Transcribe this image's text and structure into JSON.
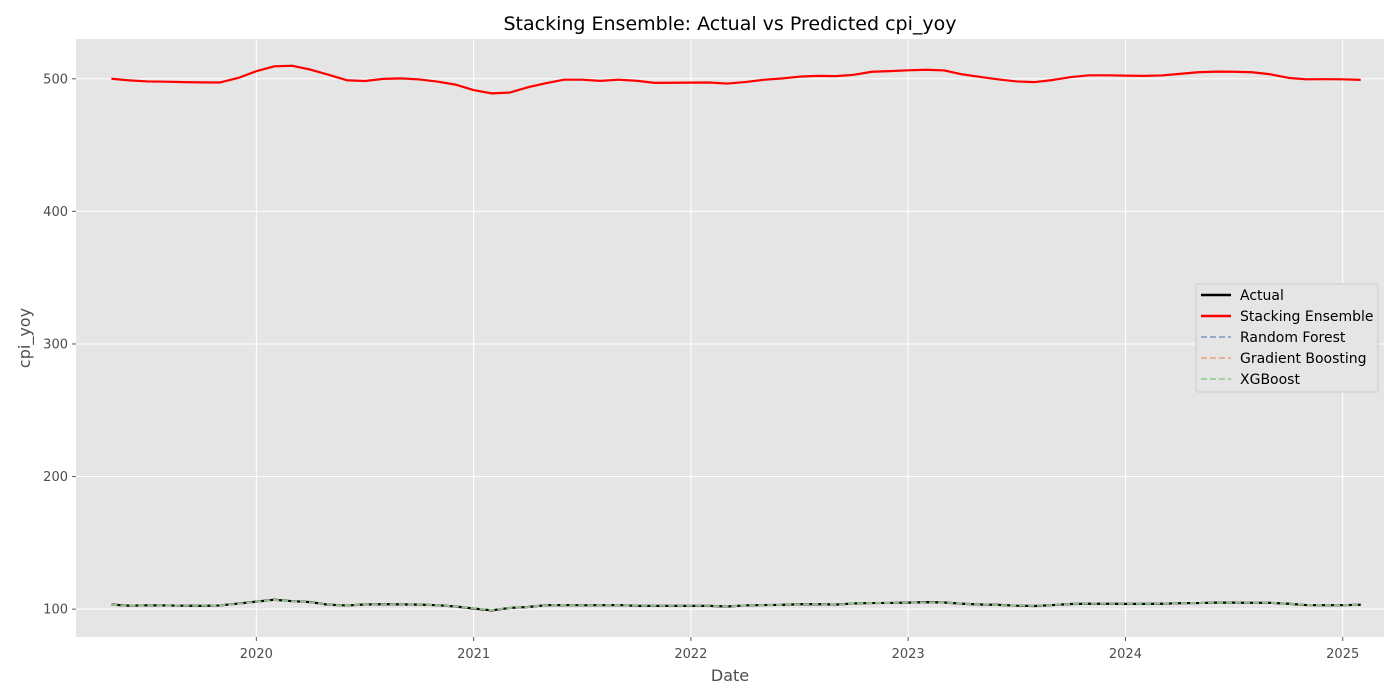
{
  "chart_data": {
    "type": "line",
    "title": "Stacking Ensemble: Actual vs Predicted cpi_yoy",
    "xlabel": "Date",
    "ylabel": "cpi_yoy",
    "xlim": [
      2019.17,
      2025.19
    ],
    "ylim": [
      79,
      530
    ],
    "x_ticks": [
      2020,
      2021,
      2022,
      2023,
      2024,
      2025
    ],
    "x_tick_labels": [
      "2020",
      "2021",
      "2022",
      "2023",
      "2024",
      "2025"
    ],
    "y_ticks": [
      100,
      200,
      300,
      400,
      500
    ],
    "y_tick_labels": [
      "100",
      "200",
      "300",
      "400",
      "500"
    ],
    "grid": true,
    "legend_position": "center-right",
    "x_start_year": 2019.333,
    "x_step_years": 0.08333,
    "series": [
      {
        "name": "Actual",
        "color": "#000000",
        "style": "solid",
        "values": [
          103.4,
          102.6,
          102.9,
          102.8,
          102.6,
          102.5,
          102.8,
          104.2,
          105.7,
          107.1,
          106.0,
          105.3,
          103.3,
          102.8,
          103.5,
          103.7,
          103.6,
          103.4,
          103.0,
          102.0,
          100.5,
          99.1,
          100.9,
          101.6,
          103.0,
          103.1,
          102.9,
          103.0,
          103.1,
          102.5,
          102.5,
          102.5,
          102.5,
          102.5,
          102.0,
          102.8,
          103.1,
          103.2,
          103.7,
          103.8,
          103.4,
          104.3,
          104.6,
          104.7,
          104.9,
          105.3,
          105.0,
          104.1,
          103.5,
          103.2,
          102.6,
          102.4,
          103.1,
          103.9,
          104.1,
          104.1,
          104.0,
          104.0,
          104.1,
          104.5,
          104.6,
          104.9,
          104.9,
          104.8,
          104.8,
          104.1,
          103.1,
          103.0,
          103.0,
          103.3
        ]
      },
      {
        "name": "Stacking Ensemble",
        "color": "#ff0000",
        "style": "solid",
        "values": [
          500.0,
          498.8,
          498.0,
          497.8,
          497.5,
          497.3,
          497.2,
          500.6,
          505.7,
          509.4,
          509.8,
          506.9,
          503.0,
          498.9,
          498.3,
          499.9,
          500.3,
          499.5,
          497.9,
          495.6,
          491.5,
          489.0,
          489.6,
          493.6,
          496.7,
          499.3,
          499.3,
          498.4,
          499.3,
          498.5,
          496.9,
          497.0,
          497.1,
          497.2,
          496.4,
          497.5,
          499.2,
          500.2,
          501.6,
          502.2,
          502.0,
          503.0,
          505.3,
          505.8,
          506.4,
          506.8,
          506.3,
          503.3,
          501.4,
          499.5,
          498.0,
          497.5,
          499.1,
          501.3,
          502.6,
          502.6,
          502.4,
          502.2,
          502.5,
          503.7,
          504.9,
          505.4,
          505.3,
          504.9,
          503.4,
          500.7,
          499.6,
          499.7,
          499.6,
          499.2
        ]
      },
      {
        "name": "Random Forest",
        "color": "#7b96c4",
        "style": "dashed",
        "values": [
          103.2,
          102.5,
          102.8,
          102.7,
          102.5,
          102.4,
          102.7,
          104.0,
          105.5,
          106.8,
          105.8,
          105.1,
          103.2,
          102.7,
          103.4,
          103.6,
          103.5,
          103.3,
          102.9,
          101.9,
          100.6,
          99.3,
          100.8,
          101.5,
          102.9,
          103.0,
          102.8,
          102.9,
          103.0,
          102.4,
          102.4,
          102.4,
          102.4,
          102.4,
          102.0,
          102.7,
          103.0,
          103.1,
          103.6,
          103.7,
          103.3,
          104.2,
          104.5,
          104.6,
          104.8,
          105.1,
          104.9,
          104.0,
          103.4,
          103.1,
          102.6,
          102.4,
          103.0,
          103.8,
          104.0,
          104.0,
          103.9,
          103.9,
          104.0,
          104.4,
          104.5,
          104.8,
          104.8,
          104.7,
          104.7,
          104.0,
          103.1,
          103.0,
          103.0,
          103.2
        ]
      },
      {
        "name": "Gradient Boosting",
        "color": "#e8a07a",
        "style": "dashed",
        "values": [
          103.3,
          102.6,
          102.9,
          102.8,
          102.6,
          102.5,
          102.8,
          104.1,
          105.6,
          107.0,
          105.9,
          105.2,
          103.3,
          102.8,
          103.5,
          103.7,
          103.6,
          103.4,
          103.0,
          102.0,
          100.6,
          99.2,
          100.9,
          101.6,
          103.0,
          103.1,
          102.9,
          103.0,
          103.1,
          102.5,
          102.5,
          102.5,
          102.5,
          102.5,
          102.0,
          102.8,
          103.1,
          103.2,
          103.7,
          103.8,
          103.4,
          104.3,
          104.6,
          104.7,
          104.9,
          105.2,
          105.0,
          104.1,
          103.5,
          103.2,
          102.6,
          102.4,
          103.1,
          103.9,
          104.1,
          104.1,
          104.0,
          104.0,
          104.1,
          104.5,
          104.6,
          104.9,
          104.9,
          104.8,
          104.8,
          104.1,
          103.1,
          103.0,
          103.0,
          103.3
        ]
      },
      {
        "name": "XGBoost",
        "color": "#8ec98c",
        "style": "dashed",
        "values": [
          103.4,
          102.7,
          103.0,
          102.9,
          102.7,
          102.6,
          102.9,
          104.2,
          105.7,
          107.1,
          106.0,
          105.3,
          103.4,
          102.9,
          103.6,
          103.8,
          103.7,
          103.5,
          103.1,
          102.1,
          100.7,
          99.3,
          101.0,
          101.7,
          103.1,
          103.2,
          103.0,
          103.1,
          103.2,
          102.6,
          102.6,
          102.6,
          102.6,
          102.6,
          102.1,
          102.9,
          103.2,
          103.3,
          103.8,
          103.9,
          103.5,
          104.4,
          104.7,
          104.8,
          105.0,
          105.3,
          105.1,
          104.2,
          103.6,
          103.3,
          102.7,
          102.5,
          103.2,
          104.0,
          104.2,
          104.2,
          104.1,
          104.1,
          104.2,
          104.6,
          104.7,
          105.0,
          105.0,
          104.9,
          104.9,
          104.2,
          103.2,
          103.1,
          103.1,
          103.4
        ]
      }
    ]
  }
}
